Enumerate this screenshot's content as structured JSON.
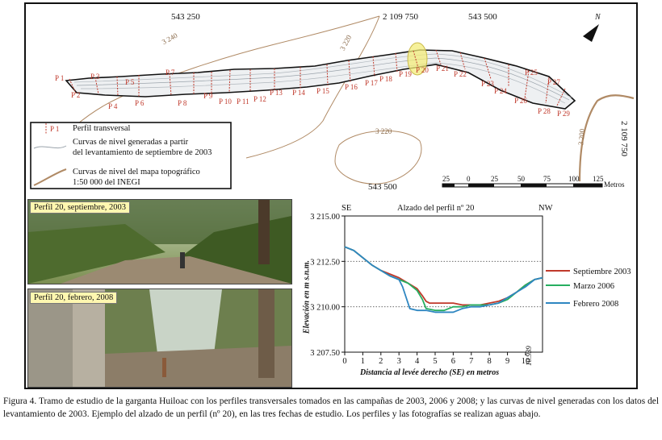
{
  "map": {
    "coords_top": [
      "543 250",
      "2 109 750",
      "543 500"
    ],
    "coord_bottom": "543 500",
    "coord_right": "2 109 750",
    "north_label": "N",
    "contour_labels": [
      "3 240",
      "3 220",
      "3 220",
      "3 200"
    ],
    "profile_labels_top": [
      "P 1",
      "P 3",
      "P 5",
      "P 7",
      "P 16",
      "P 18",
      "P 19",
      "P 20",
      "P 21",
      "P 22",
      "P 23",
      "P 25",
      "P 27"
    ],
    "profile_labels_bottom": [
      "P 2",
      "P 4",
      "P 6",
      "P 8",
      "P 9",
      "P 10",
      "P 11",
      "P 12",
      "P 13",
      "P 14",
      "P 15",
      "P 17",
      "P 24",
      "P 26",
      "P 28",
      "P 29"
    ],
    "legend": {
      "profile_mark": "P 1",
      "profile_text": "Perfil transversal",
      "contour_survey_text_1": "Curvas de nivel generadas a partir",
      "contour_survey_text_2": "del levantamiento de septiembre de 2003",
      "contour_inegi_text_1": "Curvas de nivel del mapa topográfico",
      "contour_inegi_text_2": "1:50 000 del INEGI"
    },
    "scale": {
      "ticks": [
        "25",
        "0",
        "25",
        "50",
        "75",
        "100",
        "125"
      ],
      "unit": "Metros"
    }
  },
  "photos": [
    {
      "caption": "Perfil 20, septiembre, 2003"
    },
    {
      "caption": "Perfil 20, febrero, 2008"
    }
  ],
  "chart_data": {
    "type": "line",
    "title": "Alzado del perfil nº 20",
    "left_label": "SE",
    "right_label": "NW",
    "xlabel": "Distancia al levée derecho (SE) en metros",
    "ylabel": "Elevación en m s.n.m.",
    "x_end_label": "10.939",
    "xlim": [
      0,
      10.939
    ],
    "ylim": [
      3207.5,
      3215.0
    ],
    "x_ticks": [
      "0",
      "1",
      "2",
      "3",
      "4",
      "5",
      "6",
      "7",
      "8",
      "9",
      "10"
    ],
    "y_ticks": [
      "3 215.00",
      "3 212.50",
      "3 210.00",
      "3 207.50"
    ],
    "dotted_gridlines_y": [
      3212.5,
      3210.0
    ],
    "legend_position": "right",
    "series": [
      {
        "name": "Septiembre 2003",
        "color": "#c0392b",
        "x": [
          0,
          0.5,
          1,
          1.5,
          2,
          2.5,
          3,
          3.5,
          4,
          4.3,
          4.5,
          4.7,
          5,
          5.5,
          6,
          6.5,
          7,
          7.5,
          8,
          8.5,
          9,
          9.5,
          10,
          10.5,
          10.939
        ],
        "y": [
          3213.3,
          3213.1,
          3212.7,
          3212.3,
          3212.0,
          3211.8,
          3211.6,
          3211.3,
          3211.0,
          3210.6,
          3210.3,
          3210.2,
          3210.2,
          3210.2,
          3210.2,
          3210.1,
          3210.1,
          3210.1,
          3210.2,
          3210.3,
          3210.5,
          3210.8,
          3211.2,
          3211.5,
          3211.6
        ]
      },
      {
        "name": "Marzo 2006",
        "color": "#27ae60",
        "x": [
          0,
          0.5,
          1,
          1.5,
          2,
          2.5,
          3,
          3.5,
          4,
          4.3,
          4.5,
          5,
          5.5,
          6,
          6.5,
          7,
          7.5,
          8,
          8.5,
          9,
          9.5,
          10,
          10.5,
          10.939
        ],
        "y": [
          3213.3,
          3213.1,
          3212.7,
          3212.3,
          3212.0,
          3211.7,
          3211.5,
          3211.3,
          3210.9,
          3210.4,
          3209.9,
          3209.8,
          3209.8,
          3210.0,
          3210.0,
          3210.1,
          3210.1,
          3210.1,
          3210.2,
          3210.4,
          3210.8,
          3211.2,
          3211.5,
          3211.6
        ]
      },
      {
        "name": "Febrero 2008",
        "color": "#2e86c1",
        "x": [
          0,
          0.5,
          1,
          1.5,
          2,
          2.5,
          3,
          3.2,
          3.4,
          3.6,
          4,
          4.5,
          5,
          5.5,
          6,
          6.5,
          7,
          7.5,
          8,
          8.5,
          9,
          9.5,
          10,
          10.5,
          10.939
        ],
        "y": [
          3213.3,
          3213.1,
          3212.7,
          3212.3,
          3212.0,
          3211.7,
          3211.5,
          3211.1,
          3210.5,
          3209.9,
          3209.8,
          3209.8,
          3209.7,
          3209.7,
          3209.7,
          3209.9,
          3210.0,
          3210.0,
          3210.1,
          3210.2,
          3210.5,
          3210.8,
          3211.1,
          3211.5,
          3211.6
        ]
      }
    ]
  },
  "caption": "Figura 4. Tramo de estudio de la garganta Huiloac con los perfiles transversales tomados en las campañas de 2003, 2006 y 2008; y las curvas de nivel generadas con los datos del levantamiento de 2003. Ejemplo del alzado de un perfil (nº 20), en las tres fechas de estudio. Los perfiles y las fotografías se realizan aguas abajo."
}
